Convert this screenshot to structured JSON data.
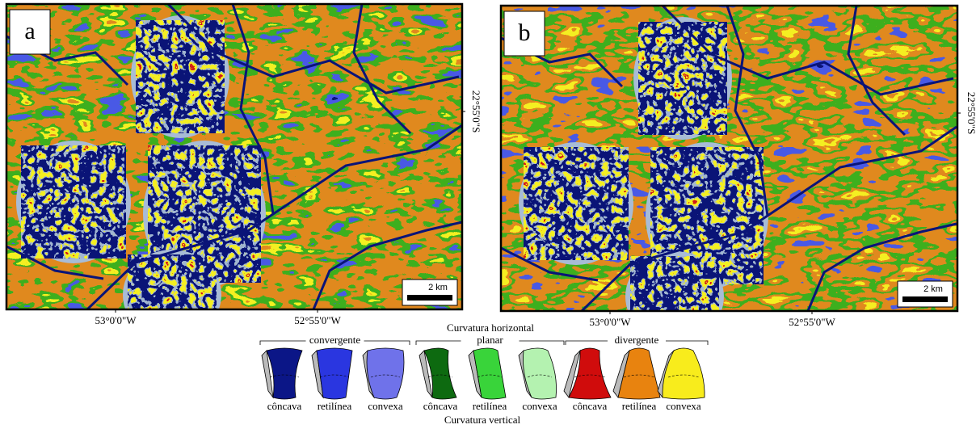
{
  "panels": [
    {
      "label": "a",
      "x_labels": [
        "53°0'0\"W",
        "52°55'0\"W"
      ],
      "y_label": "22°55'0\"S",
      "scale": "2 km"
    },
    {
      "label": "b",
      "x_labels": [
        "53°0'0\"W",
        "52°55'0\"W"
      ],
      "y_label": "22°55'0\"S",
      "scale": "2 km"
    }
  ],
  "legend": {
    "title": "Curvatura horizontal",
    "groups": [
      {
        "name": "convergente",
        "items": [
          {
            "label": "côncava",
            "color": "#0b1687"
          },
          {
            "label": "retilínea",
            "color": "#2a36e0"
          },
          {
            "label": "convexa",
            "color": "#6f72ea"
          }
        ]
      },
      {
        "name": "planar",
        "items": [
          {
            "label": "côncava",
            "color": "#0d6a10"
          },
          {
            "label": "retilínea",
            "color": "#39d43a"
          },
          {
            "label": "convexa",
            "color": "#b4f2b0"
          }
        ]
      },
      {
        "name": "divergente",
        "items": [
          {
            "label": "côncava",
            "color": "#d00c0c"
          },
          {
            "label": "retilínea",
            "color": "#e8830f"
          },
          {
            "label": "convexa",
            "color": "#f8ec1c"
          }
        ]
      }
    ],
    "footer": "Curvatura vertical"
  }
}
